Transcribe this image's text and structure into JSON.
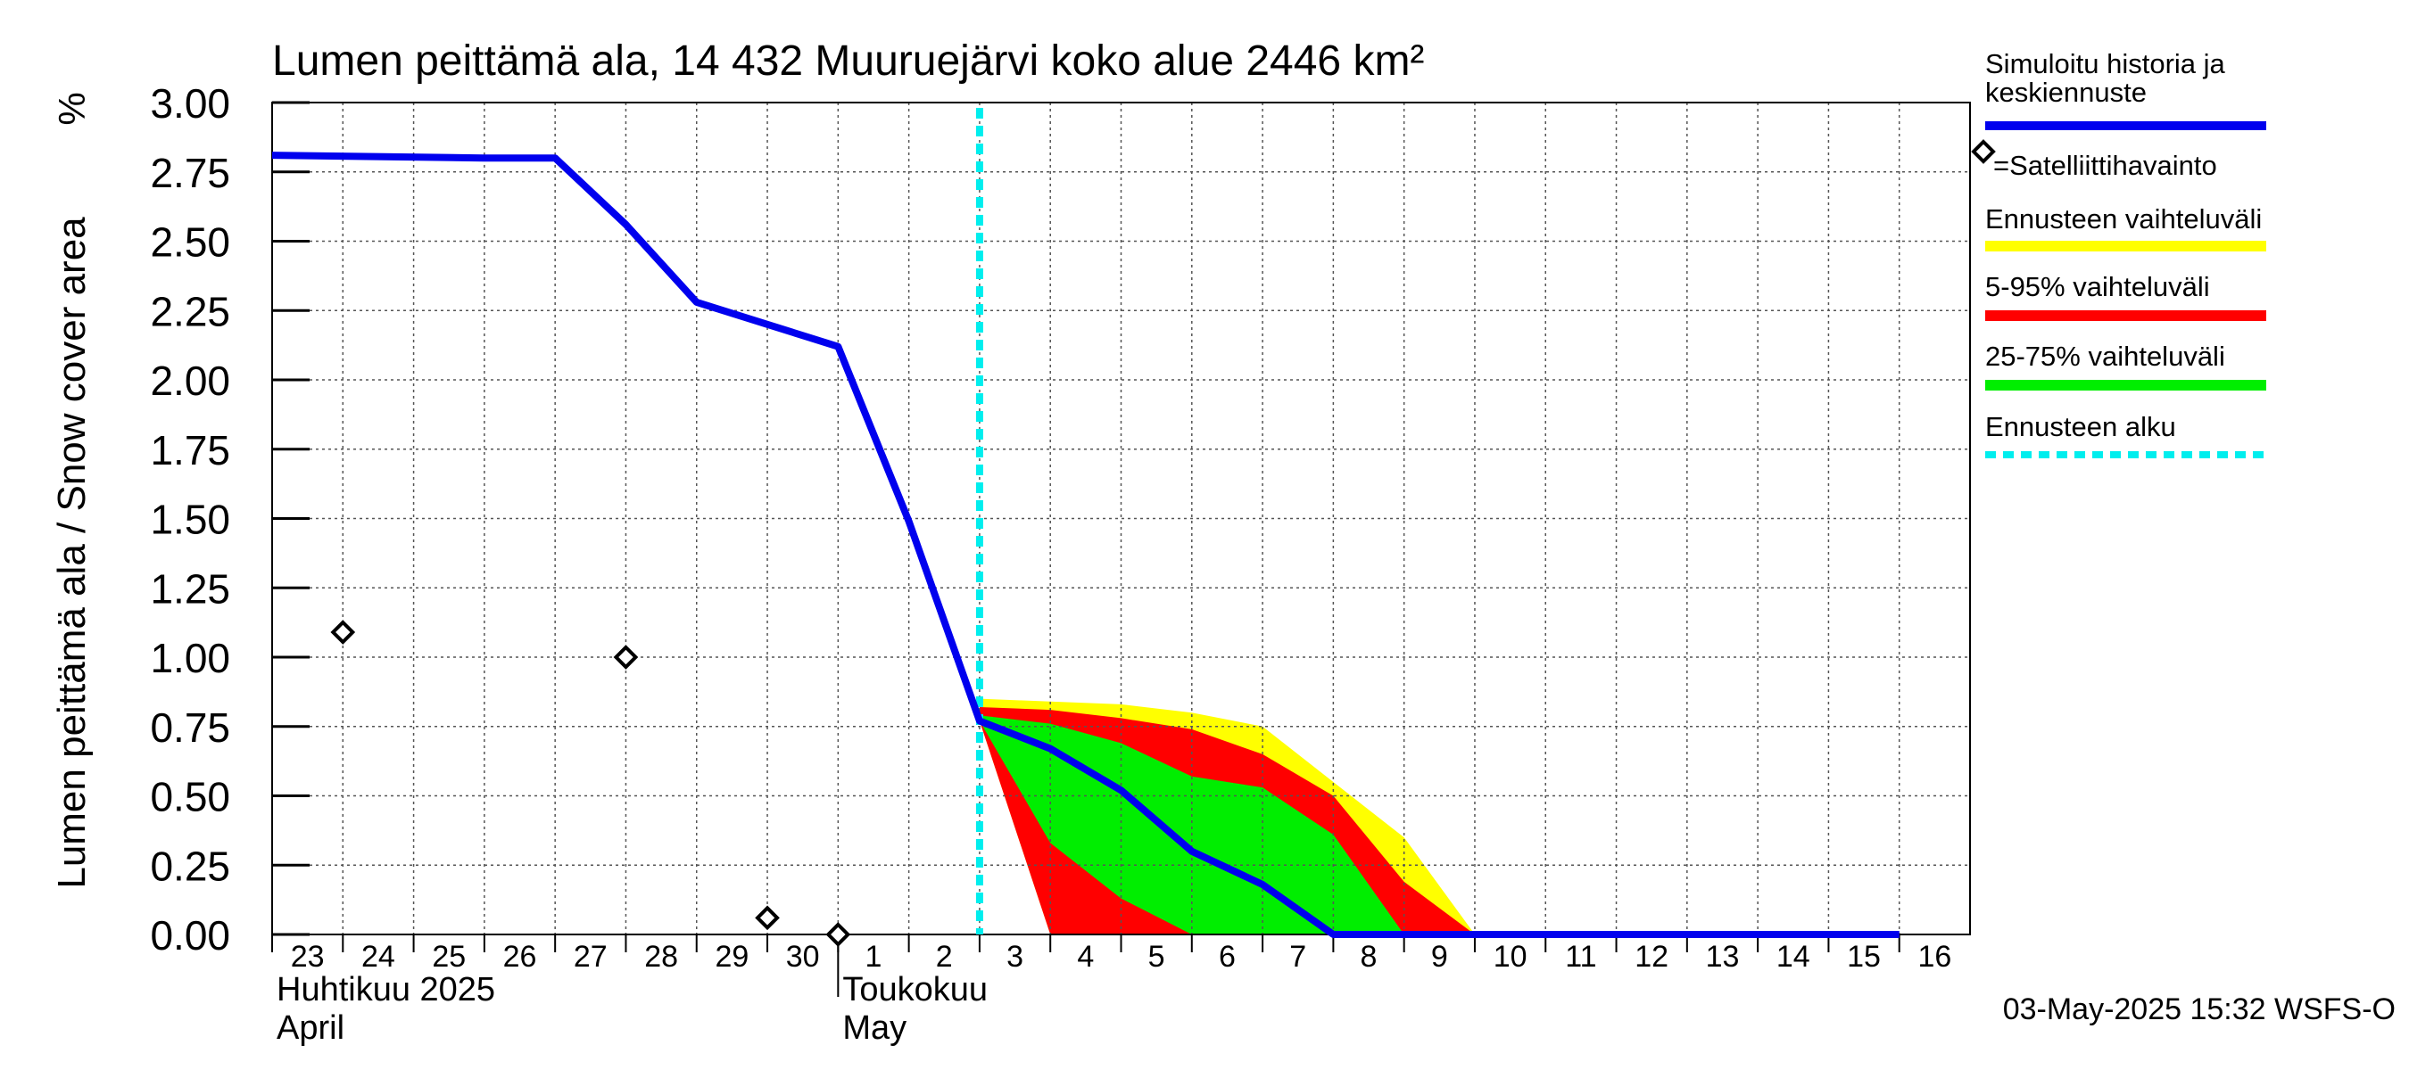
{
  "chart_data": {
    "type": "area",
    "title": "Lumen peittämä ala, 14 432 Muuruejärvi koko alue 2446 km²",
    "ylabel": "Lumen peittämä ala / Snow cover area",
    "yunit": "%",
    "ylim": [
      0,
      3
    ],
    "yticks": [
      "0.00",
      "0.25",
      "0.50",
      "0.75",
      "1.00",
      "1.25",
      "1.50",
      "1.75",
      "2.00",
      "2.25",
      "2.50",
      "2.75",
      "3.00"
    ],
    "x_start": "2025-04-23",
    "x_end": "2025-05-16",
    "xtick_labels": [
      {
        "date": "2025-04-23",
        "label": "23"
      },
      {
        "date": "2025-04-24",
        "label": "24"
      },
      {
        "date": "2025-04-25",
        "label": "25"
      },
      {
        "date": "2025-04-26",
        "label": "26"
      },
      {
        "date": "2025-04-27",
        "label": "27"
      },
      {
        "date": "2025-04-28",
        "label": "28"
      },
      {
        "date": "2025-04-29",
        "label": "29"
      },
      {
        "date": "2025-04-30",
        "label": "30"
      },
      {
        "date": "2025-05-01",
        "label": "1"
      },
      {
        "date": "2025-05-02",
        "label": "2"
      },
      {
        "date": "2025-05-03",
        "label": "3"
      },
      {
        "date": "2025-05-04",
        "label": "4"
      },
      {
        "date": "2025-05-05",
        "label": "5"
      },
      {
        "date": "2025-05-06",
        "label": "6"
      },
      {
        "date": "2025-05-07",
        "label": "7"
      },
      {
        "date": "2025-05-08",
        "label": "8"
      },
      {
        "date": "2025-05-09",
        "label": "9"
      },
      {
        "date": "2025-05-10",
        "label": "10"
      },
      {
        "date": "2025-05-11",
        "label": "11"
      },
      {
        "date": "2025-05-12",
        "label": "12"
      },
      {
        "date": "2025-05-13",
        "label": "13"
      },
      {
        "date": "2025-05-14",
        "label": "14"
      },
      {
        "date": "2025-05-15",
        "label": "15"
      },
      {
        "date": "2025-05-16",
        "label": "16"
      }
    ],
    "month_labels": [
      {
        "date": "2025-04-23",
        "fi": "Huhtikuu  2025",
        "en": "April"
      },
      {
        "date": "2025-05-01",
        "fi": "Toukokuu",
        "en": "May"
      }
    ],
    "month_boundary": "2025-05-01",
    "forecast_start": "2025-05-03",
    "grid": true,
    "legend_position": "right",
    "series": [
      {
        "name": "Simuloitu historia ja keskiennuste",
        "color": "#0000ee",
        "points": [
          [
            "2025-04-23",
            2.81
          ],
          [
            "2025-04-26",
            2.8
          ],
          [
            "2025-04-27",
            2.8
          ],
          [
            "2025-04-28",
            2.56
          ],
          [
            "2025-04-29",
            2.28
          ],
          [
            "2025-04-30",
            2.2
          ],
          [
            "2025-05-01",
            2.12
          ],
          [
            "2025-05-02",
            1.49
          ],
          [
            "2025-05-03",
            0.77
          ],
          [
            "2025-05-04",
            0.67
          ],
          [
            "2025-05-05",
            0.52
          ],
          [
            "2025-05-06",
            0.3
          ],
          [
            "2025-05-07",
            0.18
          ],
          [
            "2025-05-08",
            0.0
          ],
          [
            "2025-05-16",
            0.0
          ]
        ]
      }
    ],
    "observations": {
      "name": "=Satelliittihavainto",
      "points": [
        [
          "2025-04-24",
          1.09
        ],
        [
          "2025-04-28",
          1.0
        ],
        [
          "2025-04-30",
          0.06
        ],
        [
          "2025-05-01",
          0.0
        ]
      ]
    },
    "bands": [
      {
        "name": "Ennusteen vaihteluväli",
        "color": "#ffff00",
        "upper": [
          [
            "2025-05-03",
            0.85
          ],
          [
            "2025-05-04",
            0.84
          ],
          [
            "2025-05-05",
            0.83
          ],
          [
            "2025-05-06",
            0.8
          ],
          [
            "2025-05-07",
            0.75
          ],
          [
            "2025-05-08",
            0.55
          ],
          [
            "2025-05-09",
            0.35
          ],
          [
            "2025-05-10",
            0.0
          ]
        ],
        "lower": [
          [
            "2025-05-03",
            0.77
          ],
          [
            "2025-05-04",
            0.0
          ],
          [
            "2025-05-10",
            0.0
          ]
        ]
      },
      {
        "name": "5-95% vaihteluväli",
        "color": "#ff0000",
        "upper": [
          [
            "2025-05-03",
            0.82
          ],
          [
            "2025-05-04",
            0.81
          ],
          [
            "2025-05-05",
            0.78
          ],
          [
            "2025-05-06",
            0.74
          ],
          [
            "2025-05-07",
            0.65
          ],
          [
            "2025-05-08",
            0.5
          ],
          [
            "2025-05-09",
            0.19
          ],
          [
            "2025-05-10",
            0.0
          ]
        ],
        "lower": [
          [
            "2025-05-03",
            0.77
          ],
          [
            "2025-05-04",
            0.0
          ],
          [
            "2025-05-10",
            0.0
          ]
        ]
      },
      {
        "name": "25-75% vaihteluväli",
        "color": "#00ee00",
        "upper": [
          [
            "2025-05-03",
            0.79
          ],
          [
            "2025-05-04",
            0.76
          ],
          [
            "2025-05-05",
            0.69
          ],
          [
            "2025-05-06",
            0.57
          ],
          [
            "2025-05-07",
            0.53
          ],
          [
            "2025-05-08",
            0.36
          ],
          [
            "2025-05-09",
            0.0
          ]
        ],
        "lower": [
          [
            "2025-05-03",
            0.77
          ],
          [
            "2025-05-04",
            0.33
          ],
          [
            "2025-05-05",
            0.13
          ],
          [
            "2025-05-06",
            0.0
          ],
          [
            "2025-05-09",
            0.0
          ]
        ]
      }
    ],
    "forecast_start_legend": {
      "name": "Ennusteen alku",
      "color": "#00eeee"
    },
    "legend_order": [
      "Simuloitu historia ja keskiennuste",
      "=Satelliittihavainto",
      "Ennusteen vaihteluväli",
      "5-95% vaihteluväli",
      "25-75% vaihteluväli",
      "Ennusteen alku"
    ],
    "timestamp": "03-May-2025 15:32 WSFS-O"
  }
}
